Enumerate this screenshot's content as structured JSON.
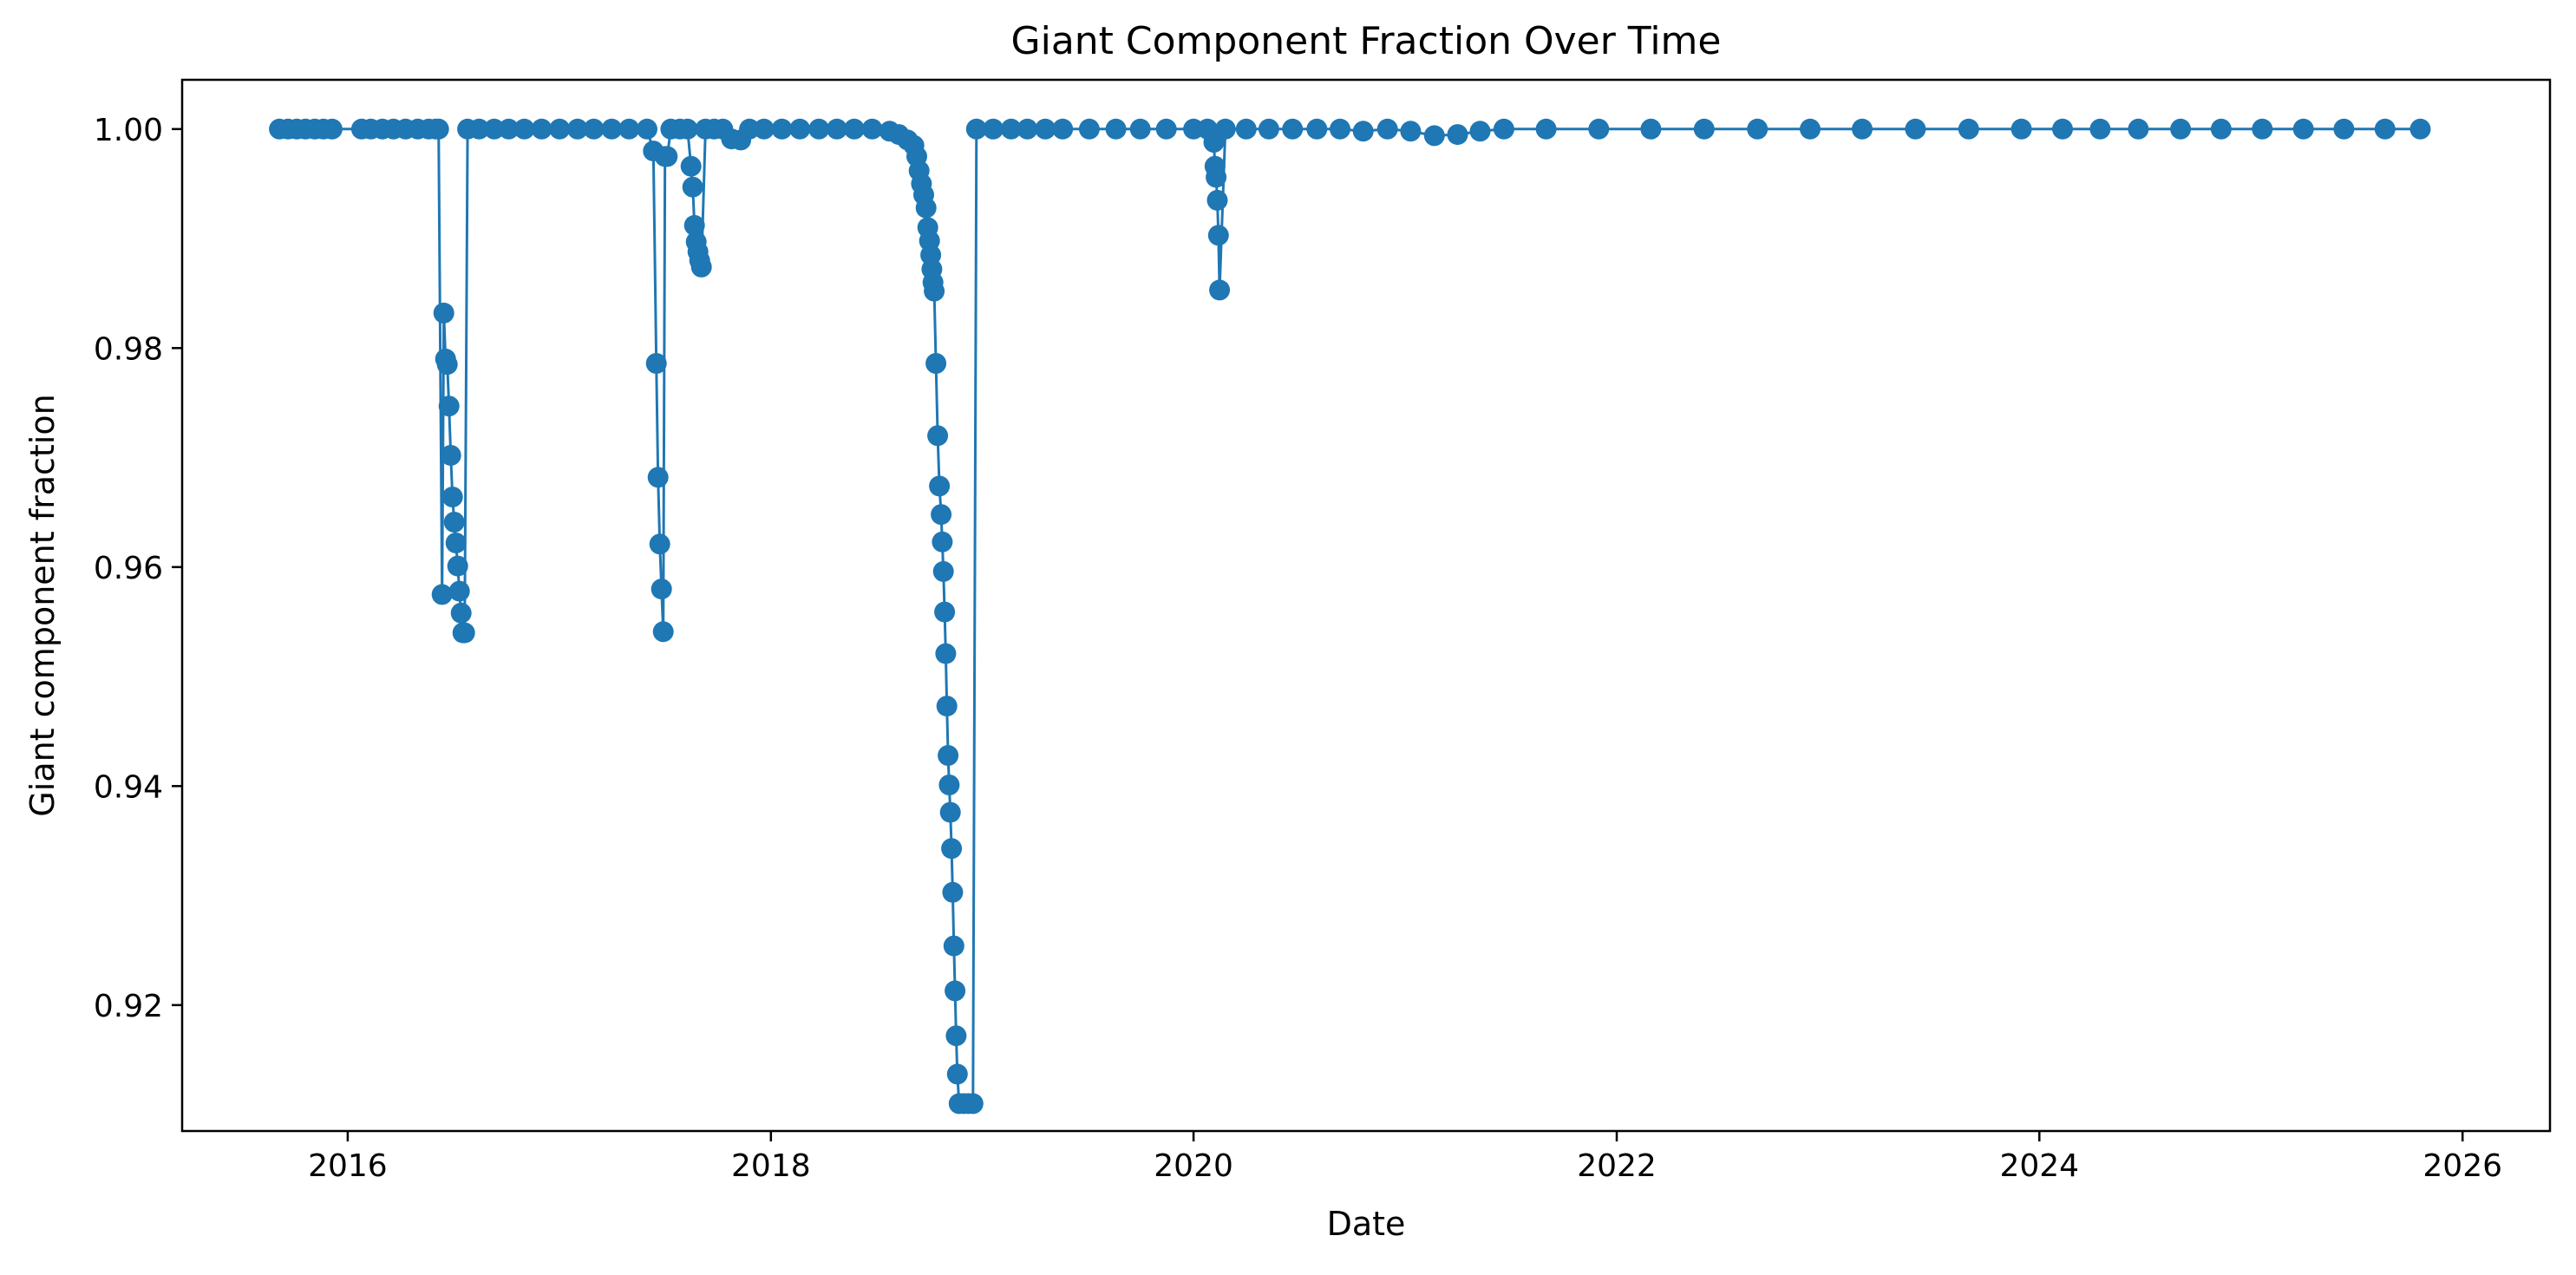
{
  "chart_data": {
    "type": "line",
    "title": "Giant Component Fraction Over Time",
    "xlabel": "Date",
    "ylabel": "Giant component fraction",
    "x_is_date": true,
    "xlim": [
      "2015-03-21",
      "2026-06-01"
    ],
    "ylim": [
      0.9085,
      1.0045
    ],
    "x_ticks": [
      "2016",
      "2018",
      "2020",
      "2022",
      "2024",
      "2026"
    ],
    "y_ticks": [
      0.92,
      0.94,
      0.96,
      0.98,
      1.0
    ],
    "y_tick_labels": [
      "0.92",
      "0.94",
      "0.96",
      "0.98",
      "1.00"
    ],
    "grid": false,
    "legend": "none",
    "marker": "circle",
    "color": "#1f77b4",
    "series": [
      {
        "points": [
          [
            "2015-09-05",
            1.0
          ],
          [
            "2015-09-20",
            1.0
          ],
          [
            "2015-10-05",
            1.0
          ],
          [
            "2015-10-20",
            1.0
          ],
          [
            "2015-11-05",
            1.0
          ],
          [
            "2015-11-20",
            1.0
          ],
          [
            "2015-12-05",
            1.0
          ],
          [
            "2016-01-25",
            1.0
          ],
          [
            "2016-02-10",
            1.0
          ],
          [
            "2016-03-01",
            1.0
          ],
          [
            "2016-03-20",
            1.0
          ],
          [
            "2016-04-10",
            1.0
          ],
          [
            "2016-05-01",
            1.0
          ],
          [
            "2016-05-20",
            1.0
          ],
          [
            "2016-06-01",
            1.0
          ],
          [
            "2016-06-06",
            1.0
          ],
          [
            "2016-06-12",
            0.9575
          ],
          [
            "2016-06-15",
            0.9832
          ],
          [
            "2016-06-18",
            0.979
          ],
          [
            "2016-06-21",
            0.9785
          ],
          [
            "2016-06-24",
            0.9747
          ],
          [
            "2016-06-27",
            0.9702
          ],
          [
            "2016-06-30",
            0.9664
          ],
          [
            "2016-07-03",
            0.9641
          ],
          [
            "2016-07-06",
            0.9622
          ],
          [
            "2016-07-09",
            0.9601
          ],
          [
            "2016-07-12",
            0.9578
          ],
          [
            "2016-07-15",
            0.9558
          ],
          [
            "2016-07-18",
            0.954
          ],
          [
            "2016-07-21",
            0.954
          ],
          [
            "2016-07-26",
            1.0
          ],
          [
            "2016-08-15",
            1.0
          ],
          [
            "2016-09-10",
            1.0
          ],
          [
            "2016-10-05",
            1.0
          ],
          [
            "2016-11-01",
            1.0
          ],
          [
            "2016-12-01",
            1.0
          ],
          [
            "2017-01-01",
            1.0
          ],
          [
            "2017-02-01",
            1.0
          ],
          [
            "2017-03-01",
            1.0
          ],
          [
            "2017-04-01",
            1.0
          ],
          [
            "2017-05-01",
            1.0
          ],
          [
            "2017-06-01",
            1.0
          ],
          [
            "2017-06-12",
            0.998
          ],
          [
            "2017-06-17",
            0.9786
          ],
          [
            "2017-06-20",
            0.9682
          ],
          [
            "2017-06-23",
            0.9621
          ],
          [
            "2017-06-26",
            0.958
          ],
          [
            "2017-06-29",
            0.9541
          ],
          [
            "2017-07-02",
            0.9975
          ],
          [
            "2017-07-06",
            0.9975
          ],
          [
            "2017-07-12",
            1.0
          ],
          [
            "2017-07-28",
            1.0
          ],
          [
            "2017-08-10",
            1.0
          ],
          [
            "2017-08-16",
            0.9966
          ],
          [
            "2017-08-19",
            0.9947
          ],
          [
            "2017-08-22",
            0.9912
          ],
          [
            "2017-08-25",
            0.9897
          ],
          [
            "2017-08-28",
            0.9888
          ],
          [
            "2017-08-31",
            0.988
          ],
          [
            "2017-09-03",
            0.9874
          ],
          [
            "2017-09-10",
            1.0
          ],
          [
            "2017-09-25",
            1.0
          ],
          [
            "2017-10-10",
            1.0
          ],
          [
            "2017-10-25",
            0.9991
          ],
          [
            "2017-11-10",
            0.999
          ],
          [
            "2017-11-25",
            1.0
          ],
          [
            "2017-12-20",
            1.0
          ],
          [
            "2018-01-20",
            1.0
          ],
          [
            "2018-02-20",
            1.0
          ],
          [
            "2018-03-25",
            1.0
          ],
          [
            "2018-04-25",
            1.0
          ],
          [
            "2018-05-25",
            1.0
          ],
          [
            "2018-06-25",
            1.0
          ],
          [
            "2018-07-25",
            0.9998
          ],
          [
            "2018-08-10",
            0.9995
          ],
          [
            "2018-08-25",
            0.999
          ],
          [
            "2018-09-05",
            0.9985
          ],
          [
            "2018-09-10",
            0.9975
          ],
          [
            "2018-09-14",
            0.9962
          ],
          [
            "2018-09-18",
            0.995
          ],
          [
            "2018-09-22",
            0.994
          ],
          [
            "2018-09-26",
            0.9928
          ],
          [
            "2018-09-29",
            0.991
          ],
          [
            "2018-10-02",
            0.9898
          ],
          [
            "2018-10-04",
            0.9885
          ],
          [
            "2018-10-06",
            0.9872
          ],
          [
            "2018-10-08",
            0.986
          ],
          [
            "2018-10-10",
            0.9852
          ],
          [
            "2018-10-13",
            0.9786
          ],
          [
            "2018-10-16",
            0.972
          ],
          [
            "2018-10-19",
            0.9674
          ],
          [
            "2018-10-22",
            0.9648
          ],
          [
            "2018-10-24",
            0.9623
          ],
          [
            "2018-10-26",
            0.9596
          ],
          [
            "2018-10-28",
            0.9559
          ],
          [
            "2018-10-30",
            0.9521
          ],
          [
            "2018-11-01",
            0.9473
          ],
          [
            "2018-11-03",
            0.9428
          ],
          [
            "2018-11-05",
            0.9401
          ],
          [
            "2018-11-07",
            0.9376
          ],
          [
            "2018-11-09",
            0.9343
          ],
          [
            "2018-11-11",
            0.9303
          ],
          [
            "2018-11-13",
            0.9254
          ],
          [
            "2018-11-15",
            0.9213
          ],
          [
            "2018-11-17",
            0.9172
          ],
          [
            "2018-11-19",
            0.9137
          ],
          [
            "2018-11-22",
            0.911
          ],
          [
            "2018-11-30",
            0.911
          ],
          [
            "2018-12-08",
            0.911
          ],
          [
            "2018-12-16",
            0.911
          ],
          [
            "2018-12-22",
            1.0
          ],
          [
            "2019-01-20",
            1.0
          ],
          [
            "2019-02-20",
            1.0
          ],
          [
            "2019-03-20",
            1.0
          ],
          [
            "2019-04-20",
            1.0
          ],
          [
            "2019-05-20",
            1.0
          ],
          [
            "2019-07-05",
            1.0
          ],
          [
            "2019-08-20",
            1.0
          ],
          [
            "2019-10-01",
            1.0
          ],
          [
            "2019-11-15",
            1.0
          ],
          [
            "2020-01-01",
            1.0
          ],
          [
            "2020-01-25",
            1.0
          ],
          [
            "2020-02-05",
            0.9988
          ],
          [
            "2020-02-07",
            0.9966
          ],
          [
            "2020-02-09",
            0.9956
          ],
          [
            "2020-02-11",
            0.9935
          ],
          [
            "2020-02-13",
            0.9903
          ],
          [
            "2020-02-15",
            0.9853
          ],
          [
            "2020-02-25",
            1.0
          ],
          [
            "2020-04-01",
            1.0
          ],
          [
            "2020-05-10",
            1.0
          ],
          [
            "2020-06-20",
            1.0
          ],
          [
            "2020-08-01",
            1.0
          ],
          [
            "2020-09-10",
            1.0
          ],
          [
            "2020-10-20",
            0.9998
          ],
          [
            "2020-12-01",
            1.0
          ],
          [
            "2021-01-10",
            0.9998
          ],
          [
            "2021-02-20",
            0.9994
          ],
          [
            "2021-04-01",
            0.9995
          ],
          [
            "2021-05-10",
            0.9998
          ],
          [
            "2021-06-20",
            1.0
          ],
          [
            "2021-09-01",
            1.0
          ],
          [
            "2021-12-01",
            1.0
          ],
          [
            "2022-03-01",
            1.0
          ],
          [
            "2022-06-01",
            1.0
          ],
          [
            "2022-09-01",
            1.0
          ],
          [
            "2022-12-01",
            1.0
          ],
          [
            "2023-03-01",
            1.0
          ],
          [
            "2023-06-01",
            1.0
          ],
          [
            "2023-09-01",
            1.0
          ],
          [
            "2023-12-01",
            1.0
          ],
          [
            "2024-02-10",
            1.0
          ],
          [
            "2024-04-15",
            1.0
          ],
          [
            "2024-06-20",
            1.0
          ],
          [
            "2024-09-01",
            1.0
          ],
          [
            "2024-11-10",
            1.0
          ],
          [
            "2025-01-20",
            1.0
          ],
          [
            "2025-04-01",
            1.0
          ],
          [
            "2025-06-10",
            1.0
          ],
          [
            "2025-08-20",
            1.0
          ],
          [
            "2025-10-20",
            1.0
          ]
        ]
      }
    ]
  }
}
